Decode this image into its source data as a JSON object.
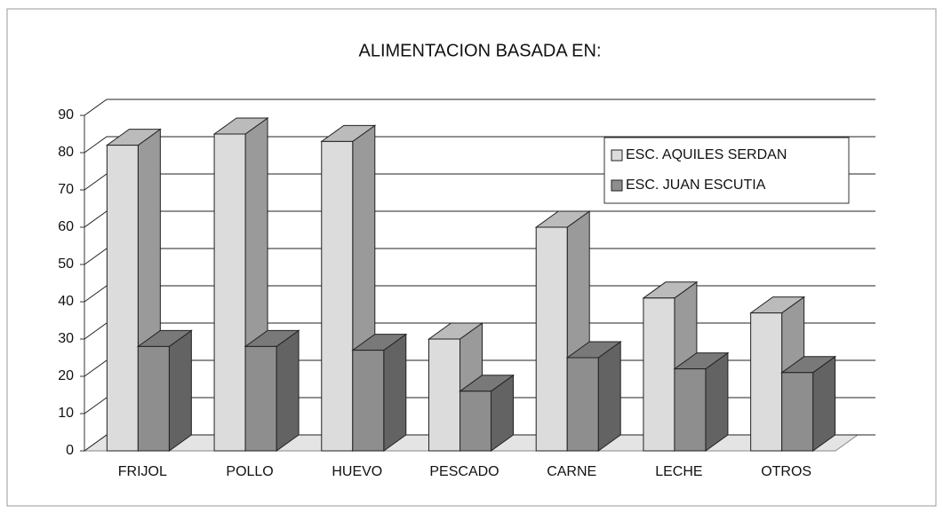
{
  "chart_data": {
    "type": "bar3d",
    "title": "ALIMENTACION BASADA EN:",
    "categories": [
      "FRIJOL",
      "POLLO",
      "HUEVO",
      "PESCADO",
      "CARNE",
      "LECHE",
      "OTROS"
    ],
    "series": [
      {
        "name": "ESC. AQUILES SERDAN",
        "color": "#dcdcdc",
        "values": [
          82,
          85,
          83,
          30,
          60,
          41,
          37
        ]
      },
      {
        "name": "ESC. JUAN ESCUTIA",
        "color": "#8e8e8e",
        "values": [
          28,
          28,
          27,
          16,
          25,
          22,
          21
        ]
      }
    ],
    "ylim": [
      0,
      90
    ],
    "yticks": [
      0,
      10,
      20,
      30,
      40,
      50,
      60,
      70,
      80,
      90
    ],
    "grid": true,
    "legend": "upper right"
  }
}
